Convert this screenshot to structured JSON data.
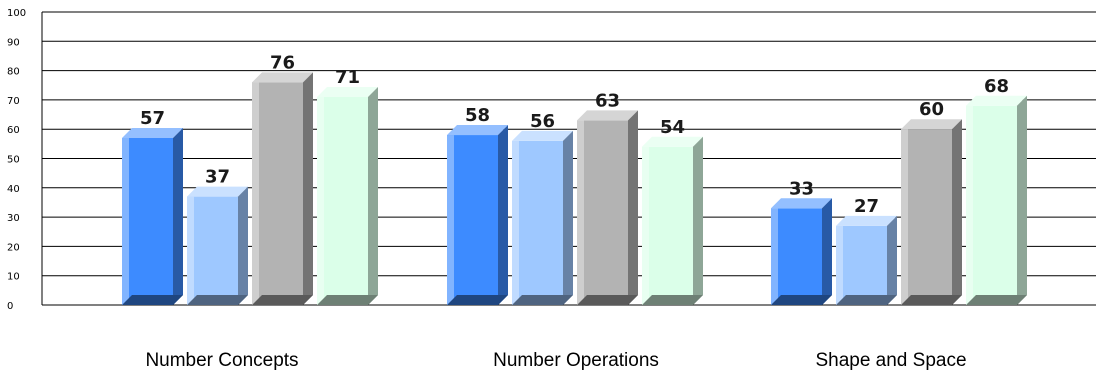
{
  "chart_data": {
    "type": "bar",
    "categories": [
      "Number Concepts",
      "Number Operations",
      "Shape and Space"
    ],
    "series": [
      {
        "values": [
          57,
          58,
          33
        ],
        "color": "#3d8bff"
      },
      {
        "values": [
          37,
          56,
          27
        ],
        "color": "#9ec8ff"
      },
      {
        "values": [
          76,
          63,
          60
        ],
        "color": "#b3b3b3"
      },
      {
        "values": [
          71,
          54,
          68
        ],
        "color": "#dbffe9"
      }
    ],
    "ylim": [
      0,
      100
    ],
    "yticks": [
      0,
      10,
      20,
      30,
      40,
      50,
      60,
      70,
      80,
      90,
      100
    ],
    "grid": true,
    "title": "",
    "xlabel": "",
    "ylabel": ""
  }
}
